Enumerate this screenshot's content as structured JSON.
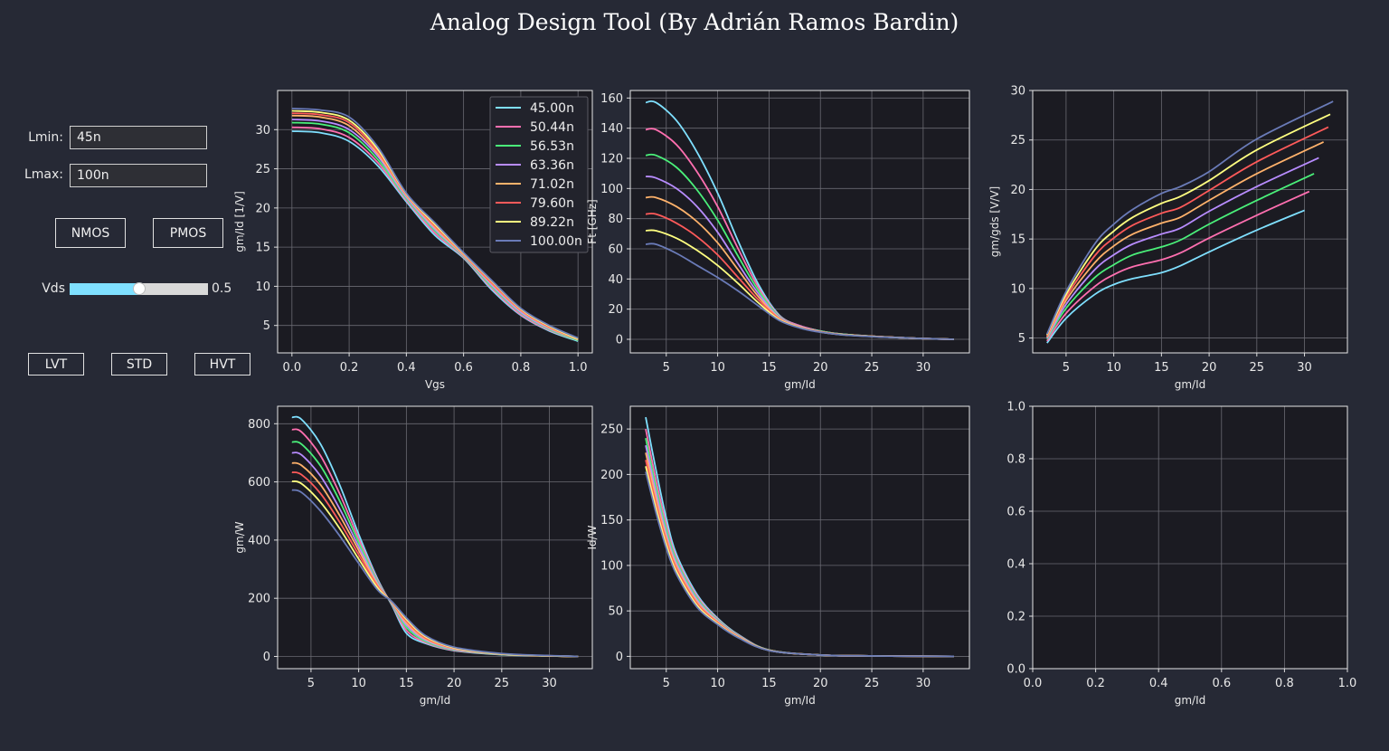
{
  "title": "Analog Design Tool (By Adrián Ramos Bardin)",
  "controls": {
    "lmin_label": "Lmin:",
    "lmin_value": "45n",
    "lmax_label": "Lmax:",
    "lmax_value": "100n",
    "nmos_label": "NMOS",
    "pmos_label": "PMOS",
    "vds_label": "Vds",
    "vds_value": 0.5,
    "vds_value_text": "0.5",
    "vds_range": [
      0,
      1
    ],
    "lvt_label": "LVT",
    "std_label": "STD",
    "hvt_label": "HVT"
  },
  "colors": {
    "background": "#262935",
    "axes_bg": "#1b1b22",
    "grid": "#6a6a72",
    "slider_fill": "#7fe0ff",
    "series": [
      "#7fe0ff",
      "#ff6fb0",
      "#4af07a",
      "#b88cff",
      "#ffb26b",
      "#ff5a5a",
      "#ffff80",
      "#6a7bb8"
    ]
  },
  "lengths": [
    "45.00n",
    "50.44n",
    "56.53n",
    "63.36n",
    "71.02n",
    "79.60n",
    "89.22n",
    "100.00n"
  ],
  "chart_data": [
    {
      "id": "gmid_vgs",
      "type": "line",
      "xlabel": "Vgs",
      "ylabel": "gm/Id [1/V]",
      "xlim": [
        -0.05,
        1.05
      ],
      "ylim": [
        1.5,
        35
      ],
      "xticks": [
        0.0,
        0.2,
        0.4,
        0.6,
        0.8,
        1.0
      ],
      "xticklabels": [
        "0.0",
        "0.2",
        "0.4",
        "0.6",
        "0.8",
        "1.0"
      ],
      "yticks": [
        5,
        10,
        15,
        20,
        25,
        30
      ],
      "yticklabels": [
        "5",
        "10",
        "15",
        "20",
        "25",
        "30"
      ],
      "grid": true,
      "legend": "top-right",
      "x": [
        0.0,
        0.1,
        0.2,
        0.3,
        0.4,
        0.5,
        0.6,
        0.7,
        0.8,
        0.9,
        1.0
      ],
      "series": [
        {
          "name": "45.00n",
          "values": [
            29.8,
            29.6,
            28.5,
            25.4,
            20.8,
            16.5,
            13.6,
            9.5,
            6.3,
            4.3,
            3.0
          ]
        },
        {
          "name": "50.44n",
          "values": [
            30.3,
            30.1,
            29.0,
            25.8,
            21.0,
            16.8,
            13.7,
            9.7,
            6.4,
            4.4,
            3.1
          ]
        },
        {
          "name": "56.53n",
          "values": [
            30.9,
            30.7,
            29.6,
            26.2,
            21.2,
            17.1,
            13.8,
            9.9,
            6.6,
            4.5,
            3.1
          ]
        },
        {
          "name": "63.36n",
          "values": [
            31.3,
            31.1,
            30.0,
            26.6,
            21.4,
            17.3,
            13.9,
            10.1,
            6.7,
            4.6,
            3.2
          ]
        },
        {
          "name": "71.02n",
          "values": [
            31.8,
            31.6,
            30.5,
            26.9,
            21.6,
            17.5,
            14.0,
            10.3,
            6.9,
            4.7,
            3.2
          ]
        },
        {
          "name": "79.60n",
          "values": [
            32.1,
            31.9,
            30.9,
            27.2,
            21.7,
            17.7,
            14.1,
            10.4,
            7.0,
            4.8,
            3.3
          ]
        },
        {
          "name": "89.22n",
          "values": [
            32.4,
            32.2,
            31.2,
            27.5,
            21.8,
            17.9,
            14.2,
            10.6,
            7.1,
            4.9,
            3.3
          ]
        },
        {
          "name": "100.00n",
          "values": [
            32.7,
            32.5,
            31.6,
            27.8,
            21.9,
            18.1,
            14.3,
            10.7,
            7.2,
            5.0,
            3.4
          ]
        }
      ]
    },
    {
      "id": "ft_gmid",
      "type": "line",
      "xlabel": "gm/Id",
      "ylabel": "Ft [GHz]",
      "xlim": [
        1.5,
        34.5
      ],
      "ylim": [
        -9,
        165
      ],
      "xticks": [
        5,
        10,
        15,
        20,
        25,
        30
      ],
      "xticklabels": [
        "5",
        "10",
        "15",
        "20",
        "25",
        "30"
      ],
      "yticks": [
        0,
        20,
        40,
        60,
        80,
        100,
        120,
        140,
        160
      ],
      "yticklabels": [
        "0",
        "20",
        "40",
        "60",
        "80",
        "100",
        "120",
        "140",
        "160"
      ],
      "grid": true,
      "x": [
        3,
        4,
        6,
        8,
        10,
        12,
        14,
        16,
        18,
        20,
        22,
        25,
        28,
        30,
        33
      ],
      "series": [
        {
          "name": "45.00n",
          "values": [
            157,
            157,
            145,
            124,
            97,
            65,
            36,
            16,
            9,
            5.5,
            3.5,
            2,
            1,
            0.5,
            0
          ]
        },
        {
          "name": "50.44n",
          "values": [
            139,
            139,
            129,
            111,
            88,
            60,
            34,
            15.5,
            9,
            5.5,
            3.5,
            2,
            1,
            0.5,
            0
          ]
        },
        {
          "name": "56.53n",
          "values": [
            122,
            122,
            114,
            99,
            79,
            55,
            32,
            15,
            8.5,
            5.5,
            3.5,
            2,
            1,
            0.5,
            0
          ]
        },
        {
          "name": "63.36n",
          "values": [
            108,
            107,
            100,
            88,
            71,
            50,
            30,
            14.5,
            8.5,
            5.2,
            3.3,
            2,
            1,
            0.5,
            0
          ]
        },
        {
          "name": "71.02n",
          "values": [
            94,
            94,
            88,
            78,
            64,
            46,
            28,
            14,
            8.2,
            5,
            3.2,
            2,
            1,
            0.5,
            0
          ]
        },
        {
          "name": "79.60n",
          "values": [
            83,
            83,
            77,
            68,
            56,
            41,
            26,
            13.5,
            8,
            5,
            3.2,
            2,
            1,
            0.5,
            0
          ]
        },
        {
          "name": "89.22n",
          "values": [
            72,
            72,
            67,
            59,
            49,
            37,
            24,
            13,
            7.8,
            4.8,
            3.1,
            1.9,
            1,
            0.5,
            0
          ]
        },
        {
          "name": "100.00n",
          "values": [
            63,
            63,
            57,
            49,
            41,
            32,
            22,
            12.5,
            7.5,
            4.7,
            3,
            1.8,
            1,
            0.5,
            0
          ]
        }
      ]
    },
    {
      "id": "gmgds_gmid",
      "type": "line",
      "xlabel": "gm/Id",
      "ylabel": "gm/gds [V/V]",
      "xlim": [
        1.5,
        34.5
      ],
      "ylim": [
        3.5,
        30
      ],
      "xticks": [
        5,
        10,
        15,
        20,
        25,
        30
      ],
      "xticklabels": [
        "5",
        "10",
        "15",
        "20",
        "25",
        "30"
      ],
      "yticks": [
        5,
        10,
        15,
        20,
        25,
        30
      ],
      "yticklabels": [
        "5",
        "10",
        "15",
        "20",
        "25",
        "30"
      ],
      "grid": true,
      "series": [
        {
          "name": "45.00n",
          "x": [
            3,
            5,
            8,
            10,
            12,
            15,
            17,
            20,
            25,
            30
          ],
          "values": [
            4.5,
            7.0,
            9.4,
            10.4,
            11.0,
            11.6,
            12.3,
            13.7,
            15.9,
            17.9
          ]
        },
        {
          "name": "50.44n",
          "x": [
            3,
            5,
            8,
            10,
            12,
            15,
            17,
            20,
            25,
            30.5
          ],
          "values": [
            4.7,
            7.5,
            10.2,
            11.4,
            12.2,
            12.9,
            13.6,
            15.1,
            17.4,
            19.8
          ]
        },
        {
          "name": "56.53n",
          "x": [
            3,
            5,
            8,
            10,
            12,
            15,
            17,
            20,
            25,
            31
          ],
          "values": [
            4.9,
            8.0,
            11.1,
            12.4,
            13.4,
            14.2,
            14.9,
            16.5,
            18.9,
            21.6
          ]
        },
        {
          "name": "63.36n",
          "x": [
            3,
            5,
            8,
            10,
            12,
            15,
            17,
            20,
            25,
            31.5
          ],
          "values": [
            5.0,
            8.4,
            11.9,
            13.4,
            14.5,
            15.5,
            16.1,
            17.8,
            20.3,
            23.2
          ]
        },
        {
          "name": "71.02n",
          "x": [
            3,
            5,
            8,
            10,
            12,
            15,
            17,
            20,
            25,
            32
          ],
          "values": [
            5.1,
            8.8,
            12.6,
            14.3,
            15.5,
            16.6,
            17.2,
            18.9,
            21.6,
            24.8
          ]
        },
        {
          "name": "79.60n",
          "x": [
            3,
            5,
            8,
            10,
            12,
            15,
            17,
            20,
            25,
            32.5
          ],
          "values": [
            5.2,
            9.1,
            13.3,
            15.1,
            16.4,
            17.6,
            18.2,
            19.9,
            22.8,
            26.3
          ]
        },
        {
          "name": "89.22n",
          "x": [
            3,
            5,
            8,
            10,
            12,
            15,
            17,
            20,
            25,
            32.7
          ],
          "values": [
            5.3,
            9.4,
            13.9,
            15.8,
            17.2,
            18.6,
            19.3,
            20.9,
            24.0,
            27.6
          ]
        },
        {
          "name": "100.00n",
          "x": [
            3,
            5,
            8,
            10,
            12,
            15,
            17,
            20,
            25,
            33
          ],
          "values": [
            5.4,
            9.7,
            14.5,
            16.5,
            18.0,
            19.6,
            20.3,
            21.8,
            25.1,
            28.9
          ]
        }
      ]
    },
    {
      "id": "gmw_gmid",
      "type": "line",
      "xlabel": "gm/Id",
      "ylabel": "gm/W",
      "xlim": [
        1.5,
        34.5
      ],
      "ylim": [
        -42,
        860
      ],
      "xticks": [
        5,
        10,
        15,
        20,
        25,
        30
      ],
      "xticklabels": [
        "5",
        "10",
        "15",
        "20",
        "25",
        "30"
      ],
      "yticks": [
        0,
        200,
        400,
        600,
        800
      ],
      "yticklabels": [
        "0",
        "200",
        "400",
        "600",
        "800"
      ],
      "grid": true,
      "x": [
        3,
        4,
        6,
        8,
        10,
        12,
        13.5,
        15,
        17,
        20,
        25,
        30,
        33
      ],
      "series": [
        {
          "name": "45.00n",
          "values": [
            822,
            815,
            730,
            590,
            420,
            265,
            175,
            80,
            45,
            20,
            6,
            2,
            0
          ]
        },
        {
          "name": "50.44n",
          "values": [
            780,
            772,
            690,
            560,
            405,
            260,
            178,
            90,
            48,
            21,
            7,
            2,
            0
          ]
        },
        {
          "name": "56.53n",
          "values": [
            737,
            730,
            655,
            535,
            392,
            255,
            180,
            100,
            52,
            23,
            7,
            2,
            0
          ]
        },
        {
          "name": "63.36n",
          "values": [
            700,
            693,
            620,
            508,
            378,
            250,
            182,
            108,
            56,
            25,
            8,
            2,
            0
          ]
        },
        {
          "name": "71.02n",
          "values": [
            665,
            657,
            590,
            485,
            365,
            245,
            184,
            115,
            60,
            27,
            8,
            2,
            0
          ]
        },
        {
          "name": "79.60n",
          "values": [
            633,
            625,
            560,
            462,
            350,
            240,
            186,
            122,
            64,
            29,
            9,
            2,
            0
          ]
        },
        {
          "name": "89.22n",
          "values": [
            602,
            594,
            530,
            440,
            335,
            235,
            187,
            128,
            68,
            30,
            9,
            2,
            0
          ]
        },
        {
          "name": "100.00n",
          "values": [
            572,
            564,
            500,
            415,
            320,
            228,
            188,
            133,
            72,
            32,
            10,
            3,
            0
          ]
        }
      ]
    },
    {
      "id": "idw_gmid",
      "type": "line",
      "xlabel": "gm/Id",
      "ylabel": "Id/W",
      "xlim": [
        1.5,
        34.5
      ],
      "ylim": [
        -13.5,
        275
      ],
      "xticks": [
        5,
        10,
        15,
        20,
        25,
        30
      ],
      "xticklabels": [
        "5",
        "10",
        "15",
        "20",
        "25",
        "30"
      ],
      "yticks": [
        0,
        50,
        100,
        150,
        200,
        250
      ],
      "yticklabels": [
        "0",
        "50",
        "100",
        "150",
        "200",
        "250"
      ],
      "grid": true,
      "x": [
        3,
        4,
        5,
        6,
        8,
        10,
        12,
        15,
        20,
        25,
        30,
        33
      ],
      "series": [
        {
          "name": "45.00n",
          "values": [
            263,
            205,
            152,
            112,
            68,
            42,
            24,
            7,
            1.5,
            0.5,
            0.2,
            0
          ]
        },
        {
          "name": "50.44n",
          "values": [
            250,
            194,
            145,
            108,
            66,
            41,
            23.5,
            7,
            1.5,
            0.5,
            0.2,
            0
          ]
        },
        {
          "name": "56.53n",
          "values": [
            240,
            186,
            140,
            105,
            64,
            40,
            23,
            7,
            1.5,
            0.5,
            0.2,
            0
          ]
        },
        {
          "name": "63.36n",
          "values": [
            232,
            180,
            135,
            102,
            62,
            39,
            22.5,
            6.8,
            1.5,
            0.5,
            0.2,
            0
          ]
        },
        {
          "name": "71.02n",
          "values": [
            224,
            174,
            131,
            99,
            60,
            38,
            22,
            6.7,
            1.5,
            0.5,
            0.2,
            0
          ]
        },
        {
          "name": "79.60n",
          "values": [
            216,
            168,
            127,
            96,
            58,
            37,
            21.5,
            6.6,
            1.5,
            0.5,
            0.2,
            0
          ]
        },
        {
          "name": "89.22n",
          "values": [
            209,
            163,
            123,
            93,
            56,
            36,
            21,
            6.5,
            1.5,
            0.5,
            0.2,
            0
          ]
        },
        {
          "name": "100.00n",
          "values": [
            203,
            158,
            119,
            90,
            54,
            35,
            20.5,
            6.4,
            1.5,
            0.5,
            0.2,
            0
          ]
        }
      ]
    },
    {
      "id": "empty_gmid",
      "type": "line",
      "xlabel": "gm/Id",
      "ylabel": "",
      "xlim": [
        0,
        1
      ],
      "ylim": [
        0,
        1
      ],
      "xticks": [
        0,
        0.2,
        0.4,
        0.6,
        0.8,
        1.0
      ],
      "xticklabels": [
        "0.0",
        "0.2",
        "0.4",
        "0.6",
        "0.8",
        "1.0"
      ],
      "yticks": [
        0,
        0.2,
        0.4,
        0.6,
        0.8,
        1.0
      ],
      "yticklabels": [
        "0.0",
        "0.2",
        "0.4",
        "0.6",
        "0.8",
        "1.0"
      ],
      "grid": true,
      "series": []
    }
  ]
}
